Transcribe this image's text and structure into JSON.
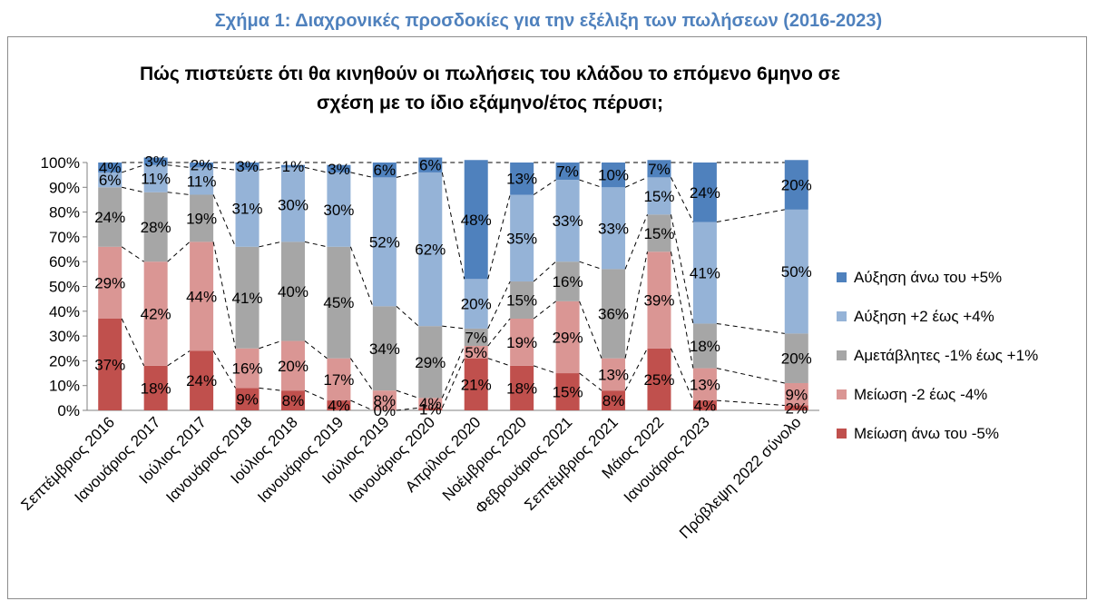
{
  "caption": "Σχήμα 1: Διαχρονικές προσδοκίες για την εξέλιξη των πωλήσεων (2016-2023)",
  "chart_data": {
    "type": "bar",
    "stacked": true,
    "title_line1": "Πώς πιστεύετε ότι θα κινηθούν οι πωλήσεις του κλάδου το επόμενο 6μηνο σε",
    "title_line2": "σχέση με το ίδιο εξάμηνο/έτος πέρυσι;",
    "categories": [
      "Σεπτέμβριος 2016",
      "Ιανουάριος 2017",
      "Ιούλιος 2017",
      "Ιανουάριος 2018",
      "Ιούλιος 2018",
      "Ιανουάριος 2019",
      "Ιούλιος 2019",
      "Ιανουάριος 2020",
      "Απρίλιος 2020",
      "Νοέμβριος 2020",
      "Φεβρουάριος 2021",
      "Σεπτέμβριος 2021",
      "Μάιος 2022",
      "Ιανουάριος 2023",
      "",
      "Πρόβλεψη 2022 σύνολο"
    ],
    "y_ticks": [
      "0%",
      "10%",
      "20%",
      "30%",
      "40%",
      "50%",
      "60%",
      "70%",
      "80%",
      "90%",
      "100%"
    ],
    "ylim": [
      0,
      100
    ],
    "legend_position": "right",
    "connector_lines": "dashed",
    "series": [
      {
        "name": "Μείωση άνω του -5%",
        "color": "#c0504d",
        "values": [
          37,
          18,
          24,
          9,
          8,
          4,
          0,
          1,
          21,
          18,
          15,
          8,
          25,
          4,
          null,
          2
        ],
        "labels": [
          "37%",
          "18%",
          "24%",
          "9%",
          "8%",
          "4%",
          "0%",
          "1%",
          "21%",
          "18%",
          "15%",
          "8%",
          "25%",
          "4%",
          "",
          "2%"
        ]
      },
      {
        "name": "Μείωση -2 έως -4%",
        "color": "#da9694",
        "values": [
          29,
          42,
          44,
          16,
          20,
          17,
          8,
          4,
          5,
          19,
          29,
          13,
          39,
          13,
          null,
          9
        ],
        "labels": [
          "29%",
          "42%",
          "44%",
          "16%",
          "20%",
          "17%",
          "8%",
          "4%",
          "5%",
          "19%",
          "29%",
          "13%",
          "39%",
          "13%",
          "",
          "9%"
        ]
      },
      {
        "name": "Αμετάβλητες -1% έως +1%",
        "color": "#a6a6a6",
        "values": [
          24,
          28,
          19,
          41,
          40,
          45,
          34,
          29,
          7,
          15,
          16,
          36,
          15,
          18,
          null,
          20
        ],
        "labels": [
          "24%",
          "28%",
          "19%",
          "41%",
          "40%",
          "45%",
          "34%",
          "29%",
          "7%",
          "15%",
          "16%",
          "36%",
          "15%",
          "18%",
          "",
          "20%"
        ]
      },
      {
        "name": "Αύξηση +2 έως +4%",
        "color": "#95b3d7",
        "values": [
          6,
          11,
          11,
          31,
          30,
          30,
          52,
          62,
          20,
          35,
          33,
          33,
          15,
          41,
          null,
          50
        ],
        "labels": [
          "6%",
          "11%",
          "11%",
          "31%",
          "30%",
          "30%",
          "52%",
          "62%",
          "20%",
          "35%",
          "33%",
          "33%",
          "15%",
          "41%",
          "",
          "50%"
        ]
      },
      {
        "name": "Αύξηση άνω του +5%",
        "color": "#4f81bd",
        "values": [
          4,
          3,
          2,
          3,
          1,
          3,
          6,
          6,
          48,
          13,
          7,
          10,
          7,
          24,
          null,
          20
        ],
        "labels": [
          "4%",
          "3%",
          "2%",
          "3%",
          "1%",
          "3%",
          "6%",
          "6%",
          "48%",
          "13%",
          "7%",
          "10%",
          "7%",
          "24%",
          "",
          "20%"
        ]
      }
    ]
  }
}
